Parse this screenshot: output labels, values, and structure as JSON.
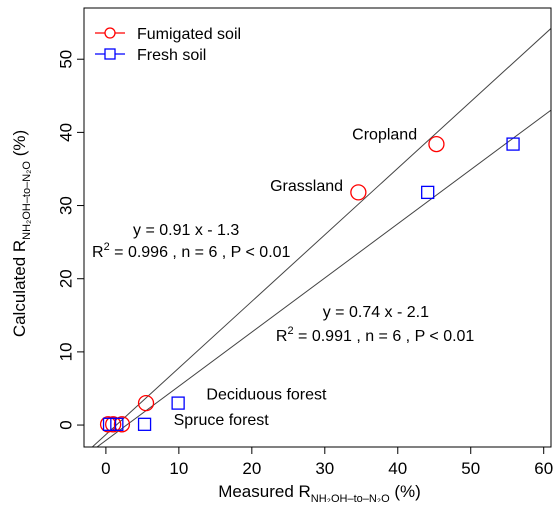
{
  "chart_data": {
    "type": "scatter",
    "xlabel": {
      "prefix": "Measured R",
      "subscript": "NH₂OH–to–N₂O",
      "suffix": " (%)"
    },
    "ylabel": {
      "prefix": "Calculated R",
      "subscript": "NH₂OH–to–N₂O",
      "suffix": " (%)"
    },
    "xlim": [
      -3,
      61
    ],
    "ylim": [
      -3,
      57
    ],
    "x_ticks": [
      0,
      10,
      20,
      30,
      40,
      50,
      60
    ],
    "x_tick_labels": [
      "0",
      "10",
      "20",
      "30",
      "40",
      "50",
      "60"
    ],
    "y_ticks": [
      0,
      10,
      20,
      30,
      40,
      50
    ],
    "y_tick_labels": [
      "0",
      "10",
      "20",
      "30",
      "40",
      "50"
    ],
    "grid": false,
    "legend_position": "top-left",
    "series": [
      {
        "name": "Fumigated soil",
        "marker": "circle",
        "color": "#ff0000",
        "points": [
          {
            "x": 0.3,
            "y": 0.1
          },
          {
            "x": 1.0,
            "y": 0.1
          },
          {
            "x": 2.2,
            "y": 0.1
          },
          {
            "x": 5.5,
            "y": 3.0
          },
          {
            "x": 34.6,
            "y": 31.8
          },
          {
            "x": 45.3,
            "y": 38.4
          }
        ]
      },
      {
        "name": "Fresh soil",
        "marker": "square",
        "color": "#0000ff",
        "points": [
          {
            "x": 0.5,
            "y": 0.1
          },
          {
            "x": 1.5,
            "y": 0.1
          },
          {
            "x": 5.3,
            "y": 0.1
          },
          {
            "x": 9.9,
            "y": 3.0
          },
          {
            "x": 44.1,
            "y": 31.8
          },
          {
            "x": 55.8,
            "y": 38.4
          }
        ]
      }
    ],
    "fit_lines": [
      {
        "slope": 0.91,
        "intercept": -1.3,
        "color": "#444444"
      },
      {
        "slope": 0.74,
        "intercept": -2.1,
        "color": "#444444"
      }
    ],
    "annotations": [
      {
        "kind": "plain",
        "text": "Cropland",
        "x": 38.2,
        "y": 39.0,
        "anchor": "middle"
      },
      {
        "kind": "plain",
        "text": "Grassland",
        "x": 27.5,
        "y": 32.0,
        "anchor": "middle"
      },
      {
        "kind": "plain",
        "text": "Deciduous forest",
        "x": 22.0,
        "y": 3.5,
        "anchor": "middle"
      },
      {
        "kind": "plain",
        "text": "Spruce forest",
        "x": 15.8,
        "y": 0.0,
        "anchor": "middle"
      },
      {
        "kind": "plain",
        "text": "y = 0.91 x - 1.3",
        "x": 11.0,
        "y": 26.0,
        "anchor": "middle"
      },
      {
        "kind": "r2",
        "text": " = 0.996 , n = 6 , P < 0.01",
        "x": -1.9,
        "y": 23.0,
        "anchor": "start"
      },
      {
        "kind": "plain",
        "text": "y = 0.74 x - 2.1",
        "x": 37.0,
        "y": 14.8,
        "anchor": "middle"
      },
      {
        "kind": "r2",
        "text": " = 0.991 , n = 6 , P < 0.01",
        "x": 23.3,
        "y": 11.5,
        "anchor": "start"
      }
    ]
  }
}
